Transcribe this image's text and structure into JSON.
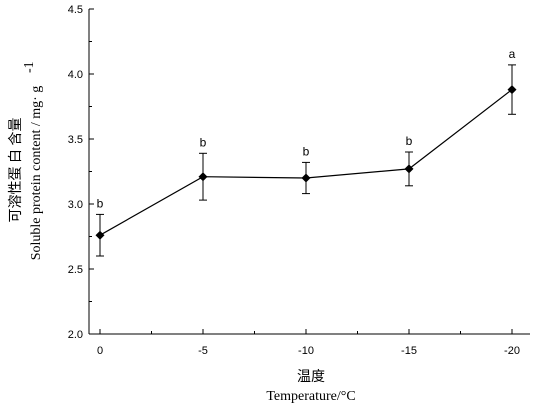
{
  "chart_data": {
    "type": "line",
    "xlabel_cn": "温度",
    "xlabel": "Temperature/°C",
    "ylabel_cn": "可溶性蛋 白 含量",
    "ylabel": "Soluble protein content / mg· g",
    "ylabel_sup": "-1",
    "x": [
      "0",
      "-5",
      "-10",
      "-15",
      "-20"
    ],
    "ylim": [
      2.0,
      4.5
    ],
    "yticks": [
      "2.0",
      "2.5",
      "3.0",
      "3.5",
      "4.0",
      "4.5"
    ],
    "series": [
      {
        "values": [
          2.76,
          3.21,
          3.2,
          3.27,
          3.88
        ],
        "errors": [
          0.16,
          0.18,
          0.12,
          0.13,
          0.19
        ],
        "significance": [
          "b",
          "b",
          "b",
          "b",
          "a"
        ]
      }
    ],
    "grid": false,
    "legend": "none"
  }
}
